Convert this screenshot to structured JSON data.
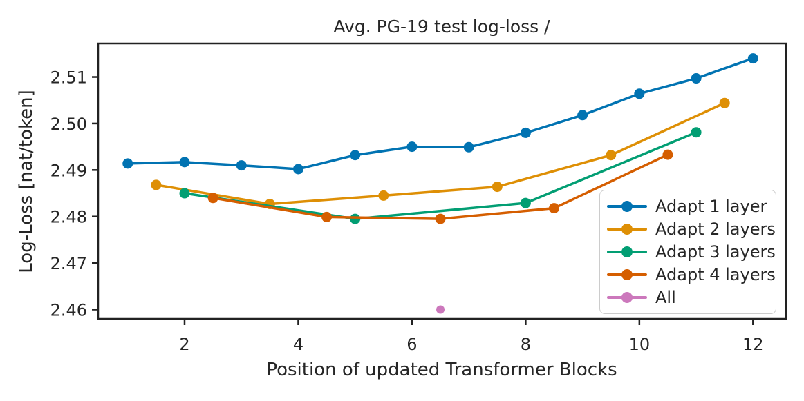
{
  "figure": {
    "background": "#ffffff",
    "text_color": "#262626",
    "spine_color": "#222222"
  },
  "chart_data": {
    "type": "line",
    "title": "Avg. PG-19 test log-loss /",
    "xlabel": "Position of updated Transformer Blocks",
    "ylabel": "Log-Loss [nat/token]",
    "xlim": [
      0.48,
      12.58
    ],
    "ylim": [
      2.458,
      2.5172
    ],
    "grid": false,
    "legend_position": "lower right inside",
    "xticks": [
      2,
      4,
      6,
      8,
      10,
      12
    ],
    "xtick_labels": [
      "2",
      "4",
      "6",
      "8",
      "10",
      "12"
    ],
    "yticks": [
      2.46,
      2.47,
      2.48,
      2.49,
      2.5,
      2.51
    ],
    "ytick_labels": [
      "2.46",
      "2.47",
      "2.48",
      "2.49",
      "2.50",
      "2.51"
    ],
    "series": [
      {
        "name": "Adapt 1 layer",
        "color": "#0173B2",
        "x": [
          1,
          2,
          3,
          4,
          5,
          6,
          7,
          8,
          9,
          10,
          11,
          12
        ],
        "y": [
          2.4914,
          2.4917,
          2.491,
          2.4902,
          2.4932,
          2.495,
          2.4949,
          2.498,
          2.5018,
          2.5064,
          2.5097,
          2.514
        ]
      },
      {
        "name": "Adapt 2 layers",
        "color": "#DE8F05",
        "x": [
          1.5,
          3.5,
          5.5,
          7.5,
          9.5,
          11.5
        ],
        "y": [
          2.4868,
          2.4827,
          2.4845,
          2.4864,
          2.4932,
          2.5044
        ]
      },
      {
        "name": "Adapt 3 layers",
        "color": "#029E73",
        "x": [
          2,
          5,
          8,
          11
        ],
        "y": [
          2.485,
          2.4795,
          2.4829,
          2.4981
        ]
      },
      {
        "name": "Adapt 4 layers",
        "color": "#D55E00",
        "x": [
          2.5,
          4.5,
          6.5,
          8.5,
          10.5
        ],
        "y": [
          2.484,
          2.4799,
          2.4795,
          2.4818,
          2.4933
        ]
      },
      {
        "name": "All",
        "color": "#CC78BC",
        "x": [
          6.5
        ],
        "y": [
          2.46
        ]
      }
    ]
  }
}
